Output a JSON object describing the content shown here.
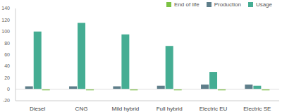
{
  "chart_data": {
    "type": "bar",
    "categories": [
      "Diesel",
      "CNG",
      "Mild hybrid",
      "Full hybrid",
      "Electric EU",
      "Electric SE"
    ],
    "series": [
      {
        "name": "Production",
        "color": "#5e7e8a",
        "values": [
          5,
          5,
          5,
          6,
          8,
          8
        ]
      },
      {
        "name": "Usage",
        "color": "#45ad93",
        "values": [
          100,
          115,
          95,
          75,
          30,
          6
        ]
      },
      {
        "name": "End of life",
        "color": "#7cc243",
        "values": [
          -2,
          -2,
          -2,
          -2,
          -2,
          -2
        ]
      }
    ],
    "ylim": [
      -20,
      140
    ],
    "yticks": [
      -20,
      0,
      20,
      40,
      60,
      80,
      100,
      120,
      140
    ],
    "grid": false,
    "legend": "top-right"
  }
}
